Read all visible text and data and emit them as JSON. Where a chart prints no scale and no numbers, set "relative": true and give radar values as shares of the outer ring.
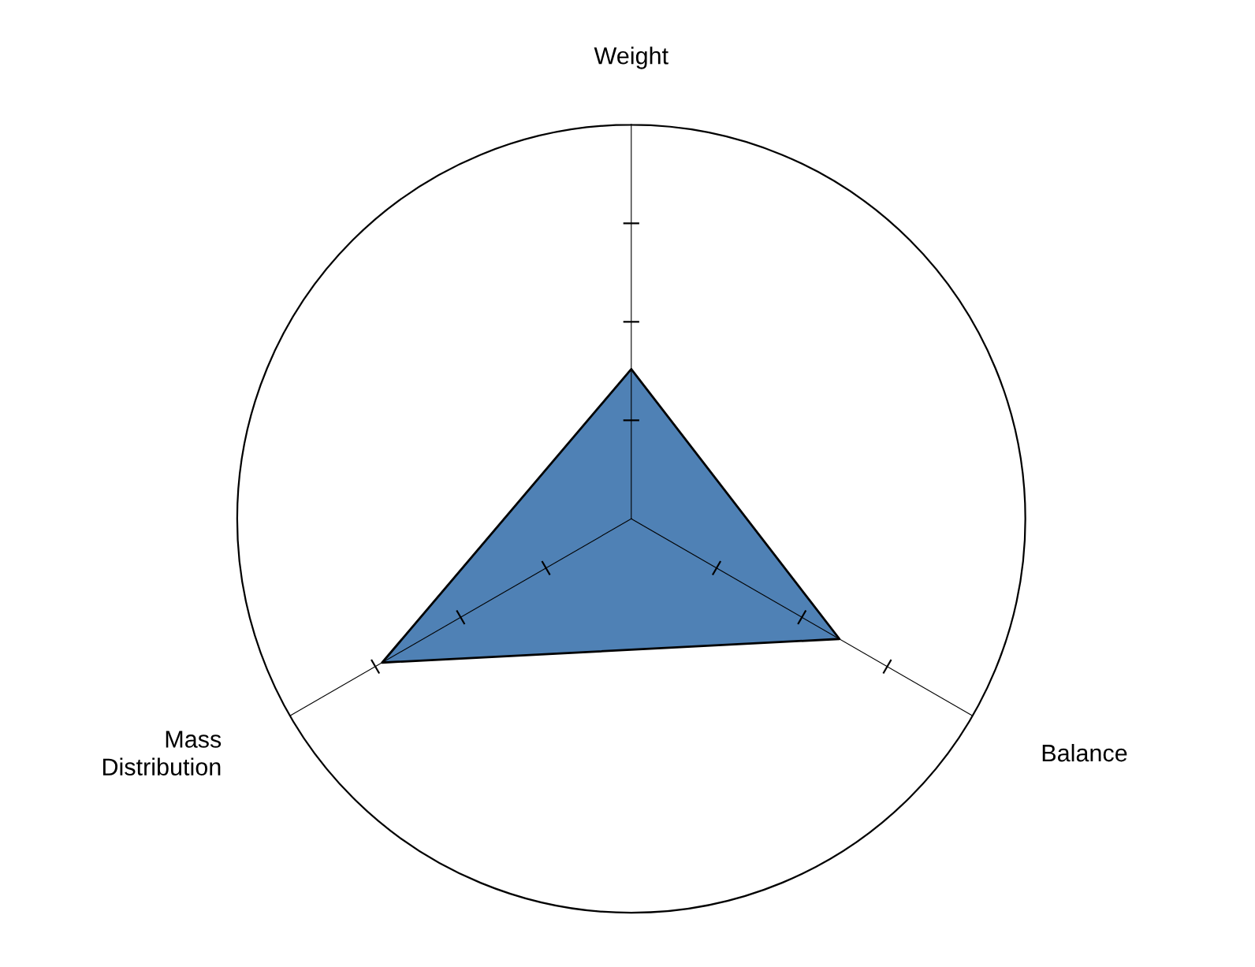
{
  "chart_data": {
    "type": "radar",
    "relative": true,
    "categories": [
      "Weight",
      "Balance",
      "Mass\nDistribution"
    ],
    "series": [
      {
        "color": "#4f81b5",
        "values": [
          0.38,
          0.61,
          0.73
        ]
      }
    ]
  }
}
